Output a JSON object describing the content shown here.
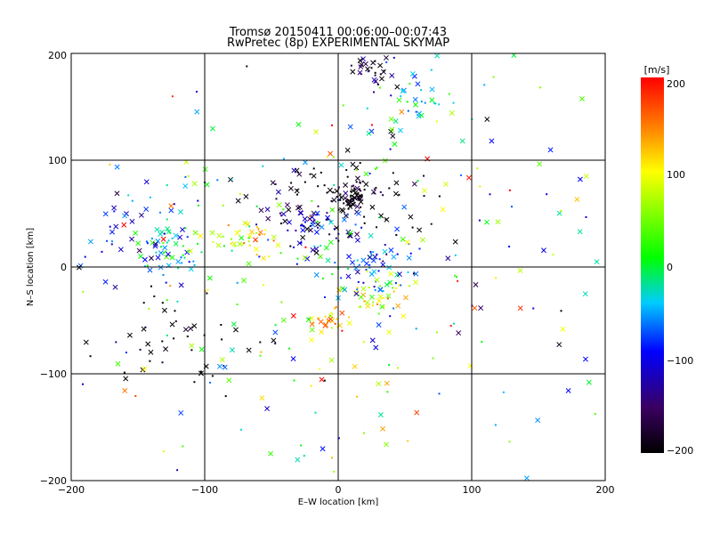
{
  "chart_data": {
    "type": "scatter",
    "title": "Tromsø 20150411 00:06:00–00:07:43",
    "subtitle": "RwPretec (8p) EXPERIMENTAL SKYMAP",
    "xlabel": "E–W location [km]",
    "ylabel": "N–S location [km]",
    "xlim": [
      -200,
      200
    ],
    "ylim": [
      -200,
      200
    ],
    "xticks": [
      "−200",
      "−100",
      "0",
      "100",
      "200"
    ],
    "yticks": [
      "−200",
      "−100",
      "0",
      "100",
      "200"
    ],
    "grid": true,
    "colorbar": {
      "label": "[m/s]",
      "range": [
        -200,
        200
      ],
      "ticks": [
        "200",
        "100",
        "0",
        "−100",
        "−200"
      ]
    },
    "markers": [
      "cross",
      "dot"
    ],
    "clusters": [
      {
        "x": 30,
        "y": 185,
        "sx": 8,
        "sy": 8,
        "v": -170,
        "n": 30
      },
      {
        "x": 55,
        "y": 160,
        "sx": 14,
        "sy": 14,
        "v": -40,
        "n": 35
      },
      {
        "x": 10,
        "y": 65,
        "sx": 7,
        "sy": 7,
        "v": -200,
        "n": 60
      },
      {
        "x": 5,
        "y": 60,
        "sx": 35,
        "sy": 25,
        "v": -200,
        "n": 80
      },
      {
        "x": -20,
        "y": 38,
        "sx": 15,
        "sy": 10,
        "v": -120,
        "n": 50
      },
      {
        "x": -70,
        "y": 28,
        "sx": 12,
        "sy": 7,
        "v": 100,
        "n": 35
      },
      {
        "x": -130,
        "y": 18,
        "sx": 12,
        "sy": 12,
        "v": -10,
        "n": 45
      },
      {
        "x": -150,
        "y": 35,
        "sx": 25,
        "sy": 25,
        "v": -90,
        "n": 55
      },
      {
        "x": 25,
        "y": 0,
        "sx": 18,
        "sy": 15,
        "v": -70,
        "n": 60
      },
      {
        "x": 30,
        "y": -25,
        "sx": 15,
        "sy": 10,
        "v": 90,
        "n": 35
      },
      {
        "x": -10,
        "y": -50,
        "sx": 8,
        "sy": 5,
        "v": 130,
        "n": 25
      },
      {
        "x": -130,
        "y": -70,
        "sx": 30,
        "sy": 25,
        "v": -200,
        "n": 45
      },
      {
        "x": 0,
        "y": 0,
        "sx": 110,
        "sy": 100,
        "v": 0,
        "n": 300
      }
    ]
  }
}
